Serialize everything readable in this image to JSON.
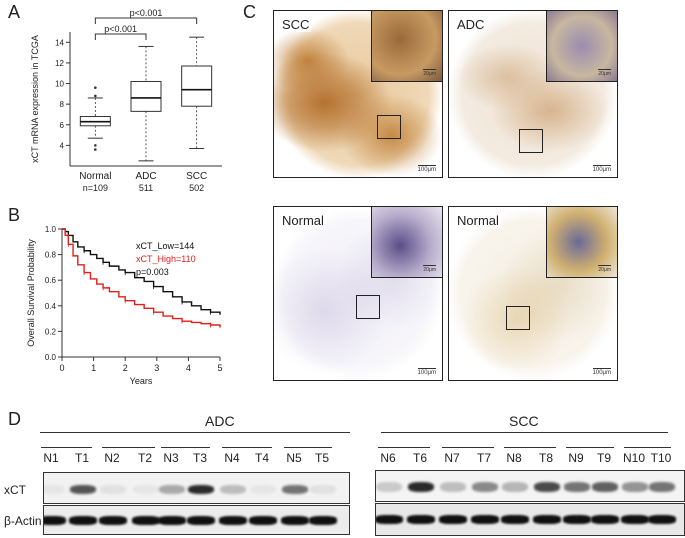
{
  "figure": {
    "panel_labels": {
      "a": "A",
      "b": "B",
      "c": "C",
      "d": "D"
    }
  },
  "chart_data": [
    {
      "type": "box",
      "panel": "A",
      "ylabel": "xCT mRNA expression in TCGA",
      "ylim": [
        2,
        15
      ],
      "yticks": [
        4,
        6,
        8,
        10,
        12,
        14
      ],
      "categories": [
        "Normal",
        "ADC",
        "SCC"
      ],
      "counts": [
        "n=109",
        "511",
        "502"
      ],
      "boxes": [
        {
          "name": "Normal",
          "whisker_low": 4.7,
          "q1": 5.9,
          "median": 6.3,
          "q3": 6.8,
          "whisker_high": 8.6,
          "outliers": [
            3.6,
            4.0,
            8.8,
            9.6
          ]
        },
        {
          "name": "ADC",
          "whisker_low": 2.5,
          "q1": 7.3,
          "median": 8.6,
          "q3": 10.2,
          "whisker_high": 13.6,
          "outliers": []
        },
        {
          "name": "SCC",
          "whisker_low": 3.7,
          "q1": 7.8,
          "median": 9.4,
          "q3": 11.7,
          "whisker_high": 14.5,
          "outliers": []
        }
      ],
      "annotations": [
        {
          "from": "Normal",
          "to": "ADC",
          "text": "p<0.001"
        },
        {
          "from": "Normal",
          "to": "SCC",
          "text": "p<0.001"
        }
      ]
    },
    {
      "type": "line",
      "panel": "B",
      "xlabel": "Years",
      "ylabel": "Overall Survival Probability",
      "xlim": [
        0,
        5
      ],
      "ylim": [
        0,
        1
      ],
      "xticks": [
        0,
        1,
        2,
        3,
        4,
        5
      ],
      "yticks": [
        0.0,
        0.2,
        0.4,
        0.6,
        0.8,
        1.0
      ],
      "legend": {
        "low": "xCT_Low=144",
        "high": "xCT_High=110",
        "p": "p=0.003"
      },
      "series": [
        {
          "name": "xCT_Low=144",
          "color": "#111111",
          "x": [
            0,
            0.1,
            0.2,
            0.35,
            0.5,
            0.7,
            0.9,
            1.1,
            1.3,
            1.5,
            1.8,
            2.0,
            2.3,
            2.6,
            2.9,
            3.2,
            3.5,
            3.8,
            4.1,
            4.4,
            4.7,
            5.0
          ],
          "y": [
            1.0,
            0.98,
            0.95,
            0.9,
            0.86,
            0.83,
            0.8,
            0.77,
            0.74,
            0.71,
            0.68,
            0.66,
            0.62,
            0.59,
            0.55,
            0.51,
            0.47,
            0.43,
            0.4,
            0.37,
            0.35,
            0.33
          ]
        },
        {
          "name": "xCT_High=110",
          "color": "#e0201a",
          "x": [
            0,
            0.1,
            0.2,
            0.35,
            0.5,
            0.7,
            0.9,
            1.1,
            1.3,
            1.5,
            1.8,
            2.0,
            2.3,
            2.6,
            2.9,
            3.2,
            3.5,
            3.8,
            4.1,
            4.4,
            4.7,
            5.0
          ],
          "y": [
            1.0,
            0.95,
            0.88,
            0.79,
            0.72,
            0.66,
            0.61,
            0.57,
            0.54,
            0.51,
            0.47,
            0.44,
            0.41,
            0.38,
            0.35,
            0.32,
            0.3,
            0.28,
            0.27,
            0.26,
            0.25,
            0.23
          ]
        }
      ]
    }
  ],
  "ihc": {
    "tiles": [
      {
        "label": "SCC",
        "scale": "100μm",
        "inset_scale": "20μm"
      },
      {
        "label": "ADC",
        "scale": "100μm",
        "inset_scale": "20μm"
      },
      {
        "label": "Normal",
        "scale": "100μm",
        "inset_scale": "20μm"
      },
      {
        "label": "Normal",
        "scale": "100μm",
        "inset_scale": "20μm"
      }
    ]
  },
  "western": {
    "groups": [
      "ADC",
      "SCC"
    ],
    "rows": [
      "xCT",
      "β-Actin"
    ],
    "adc_lanes": [
      "N1",
      "T1",
      "N2",
      "T2",
      "N3",
      "T3",
      "N4",
      "T4",
      "N5",
      "T5"
    ],
    "scc_lanes": [
      "N6",
      "T6",
      "N7",
      "T7",
      "N8",
      "T8",
      "N9",
      "T9",
      "N10",
      "T10"
    ],
    "adc_xct_intensity": [
      0.05,
      0.75,
      0.08,
      0.05,
      0.35,
      0.95,
      0.25,
      0.05,
      0.6,
      0.08
    ],
    "scc_xct_intensity": [
      0.2,
      0.95,
      0.25,
      0.5,
      0.3,
      0.8,
      0.6,
      0.7,
      0.45,
      0.6
    ]
  }
}
